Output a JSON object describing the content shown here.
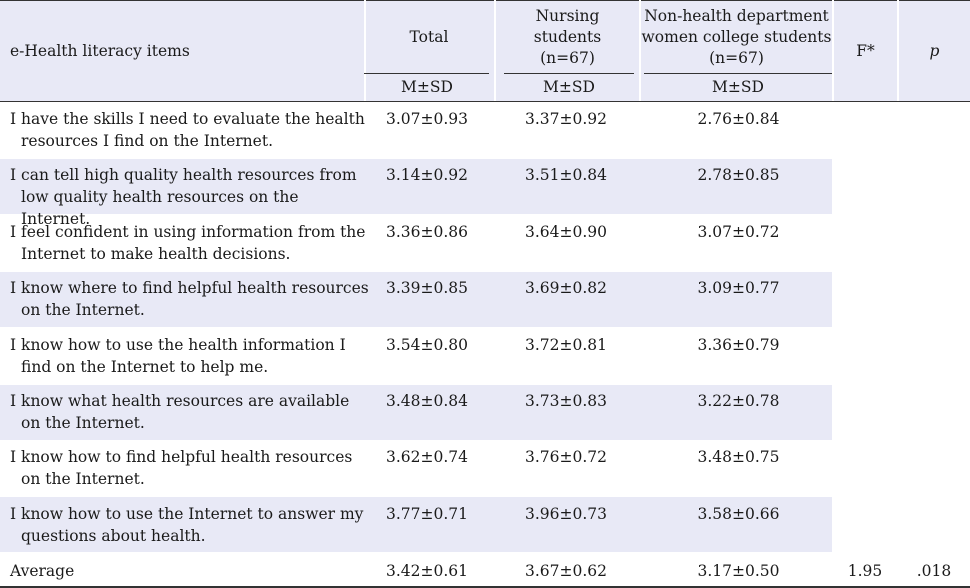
{
  "header": {
    "item_col": "e-Health literacy items",
    "total": "Total",
    "nursing": [
      "Nursing",
      "students",
      "(n=67)"
    ],
    "non_health": [
      "Non-health department",
      "women college students",
      "(n=67)"
    ],
    "f": "F*",
    "p": "p",
    "msd": "M±SD"
  },
  "rows": [
    {
      "item": "I have the skills I need to evaluate the health resources I find on the Internet.",
      "total": "3.07±0.93",
      "nursing": "3.37±0.92",
      "non_health": "2.76±0.84"
    },
    {
      "item": "I can tell high quality health resources from low quality health resources on the Internet.",
      "total": "3.14±0.92",
      "nursing": "3.51±0.84",
      "non_health": "2.78±0.85"
    },
    {
      "item": "I feel confident in using information from the Internet to make health decisions.",
      "total": "3.36±0.86",
      "nursing": "3.64±0.90",
      "non_health": "3.07±0.72"
    },
    {
      "item": "I know where to find helpful health resources on the Internet.",
      "total": "3.39±0.85",
      "nursing": "3.69±0.82",
      "non_health": "3.09±0.77"
    },
    {
      "item": "I know how to use the health information I find on the Internet to help me.",
      "total": "3.54±0.80",
      "nursing": "3.72±0.81",
      "non_health": "3.36±0.79"
    },
    {
      "item": "I know what health resources are available on the Internet.",
      "total": "3.48±0.84",
      "nursing": "3.73±0.83",
      "non_health": "3.22±0.78"
    },
    {
      "item": "I know how to find helpful health resources on the Internet.",
      "total": "3.62±0.74",
      "nursing": "3.76±0.72",
      "non_health": "3.48±0.75"
    },
    {
      "item": "I know how to use the Internet to answer my questions about health.",
      "total": "3.77±0.71",
      "nursing": "3.96±0.73",
      "non_health": "3.58±0.66"
    }
  ],
  "average": {
    "label": "Average",
    "total": "3.42±0.61",
    "nursing": "3.67±0.62",
    "non_health": "3.17±0.50",
    "f": "1.95",
    "p": ".018"
  }
}
